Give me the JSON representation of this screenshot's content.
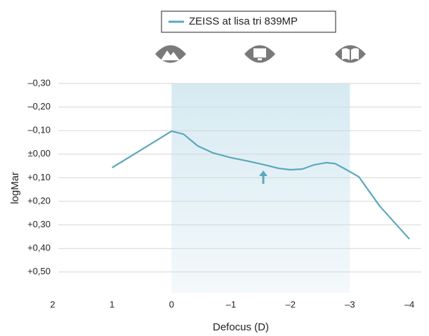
{
  "chart_data": {
    "type": "line",
    "x_label": "Defocus (D)",
    "y_label": "logMar",
    "xlim": [
      2,
      -4.2
    ],
    "xticks": [
      2,
      1,
      0,
      {
        "value": -1,
        "label": "–1"
      },
      {
        "value": -2,
        "label": "–2"
      },
      {
        "value": -3,
        "label": "–3"
      },
      {
        "value": -4,
        "label": "–4"
      }
    ],
    "ylim": [
      -0.3,
      0.6
    ],
    "y_inverted": true,
    "yticks": [
      {
        "value": -0.3,
        "label": "–0,30"
      },
      {
        "value": -0.2,
        "label": "–0,20"
      },
      {
        "value": -0.1,
        "label": "–0,10"
      },
      {
        "value": 0,
        "label": "±0,00"
      },
      {
        "value": 0.1,
        "label": "+0,10"
      },
      {
        "value": 0.2,
        "label": "+0,20"
      },
      {
        "value": 0.3,
        "label": "+0,30"
      },
      {
        "value": 0.4,
        "label": "+0,40"
      },
      {
        "value": 0.5,
        "label": "+0,50"
      }
    ],
    "grid": true,
    "highlight_x": [
      0,
      -3
    ],
    "series": [
      {
        "name": "ZEISS at lisa tri 839MP",
        "color": "#5ba8bd",
        "x": [
          1,
          0.5,
          0,
          -0.2,
          -0.44,
          -0.7,
          -1,
          -1.3,
          -1.56,
          -1.8,
          -2,
          -2.2,
          -2.4,
          -2.6,
          -2.75,
          -2.9,
          -3.15,
          -3.5,
          -4
        ],
        "values": [
          0.057,
          -0.02,
          -0.098,
          -0.085,
          -0.035,
          -0.005,
          0.015,
          0.03,
          0.045,
          0.06,
          0.066,
          0.063,
          0.045,
          0.036,
          0.04,
          0.06,
          0.096,
          0.22,
          0.36
        ]
      }
    ]
  }
}
